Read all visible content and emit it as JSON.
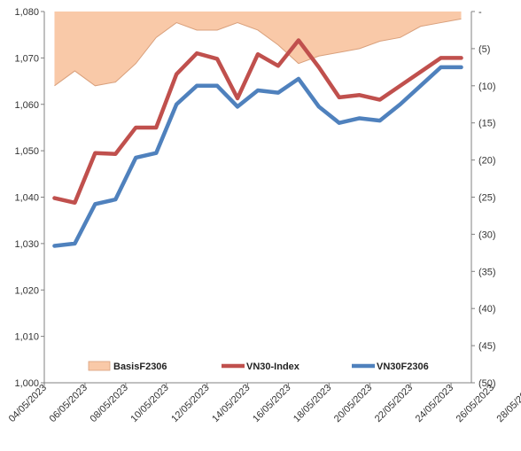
{
  "chart_data": {
    "type": "line",
    "title": "",
    "x": [
      "04/05/2023",
      "05/05/2023",
      "08/05/2023",
      "09/05/2023",
      "10/05/2023",
      "11/05/2023",
      "12/05/2023",
      "15/05/2023",
      "16/05/2023",
      "17/05/2023",
      "18/05/2023",
      "19/05/2023",
      "22/05/2023",
      "23/05/2023",
      "24/05/2023",
      "25/05/2023",
      "26/05/2023",
      "29/05/2023",
      "30/05/2023",
      "31/05/2023",
      "01/06/2023"
    ],
    "x_tick_labels": [
      "04/05/2023",
      "06/05/2023",
      "08/05/2023",
      "10/05/2023",
      "12/05/2023",
      "14/05/2023",
      "16/05/2023",
      "18/05/2023",
      "20/05/2023",
      "22/05/2023",
      "24/05/2023",
      "26/05/2023",
      "28/05/2023"
    ],
    "y_left": {
      "ylim": [
        1000,
        1080
      ],
      "ticks": [
        "1,000",
        "1,010",
        "1,020",
        "1,030",
        "1,040",
        "1,050",
        "1,060",
        "1,070",
        "1,080"
      ]
    },
    "y_right": {
      "ylim": [
        -50,
        0
      ],
      "inverted": true,
      "ticks": [
        "-",
        "(5)",
        "(10)",
        "(15)",
        "(20)",
        "(25)",
        "(30)",
        "(35)",
        "(40)",
        "(45)",
        "(50)"
      ]
    },
    "series": [
      {
        "name": "BasisF2306",
        "kind": "area",
        "axis": "right",
        "color": "#f9c9a8",
        "edge_color": "#d9a07c",
        "values": [
          -10.0,
          -8.0,
          -10.0,
          -9.5,
          -7.0,
          -3.5,
          -1.5,
          -2.5,
          -2.5,
          -1.5,
          -2.5,
          -4.5,
          -7.0,
          -6.0,
          -5.5,
          -5.0,
          -4.0,
          -3.5,
          -2.0,
          -1.5,
          -1.0
        ]
      },
      {
        "name": "VN30-Index",
        "kind": "line",
        "axis": "left",
        "color": "#c0504d",
        "values": [
          1039.8,
          1038.8,
          1049.5,
          1049.3,
          1055.0,
          1055.0,
          1066.5,
          1071.0,
          1069.8,
          1061.3,
          1070.8,
          1068.3,
          1073.8,
          1068.0,
          1061.5,
          1062.0,
          1061.0,
          1064.0,
          1067.0,
          1070.0,
          1070.0
        ]
      },
      {
        "name": "VN30F2306",
        "kind": "line",
        "axis": "left",
        "color": "#4f81bd",
        "values": [
          1029.5,
          1030.0,
          1038.5,
          1039.5,
          1048.5,
          1049.5,
          1060.0,
          1064.0,
          1064.0,
          1059.5,
          1063.0,
          1062.5,
          1065.5,
          1059.5,
          1056.0,
          1057.0,
          1056.5,
          1060.0,
          1064.0,
          1068.0,
          1068.0
        ]
      }
    ],
    "legend": {
      "placement": "bottom",
      "entries": [
        "BasisF2306",
        "VN30-Index",
        "VN30F2306"
      ]
    },
    "grid": false
  }
}
